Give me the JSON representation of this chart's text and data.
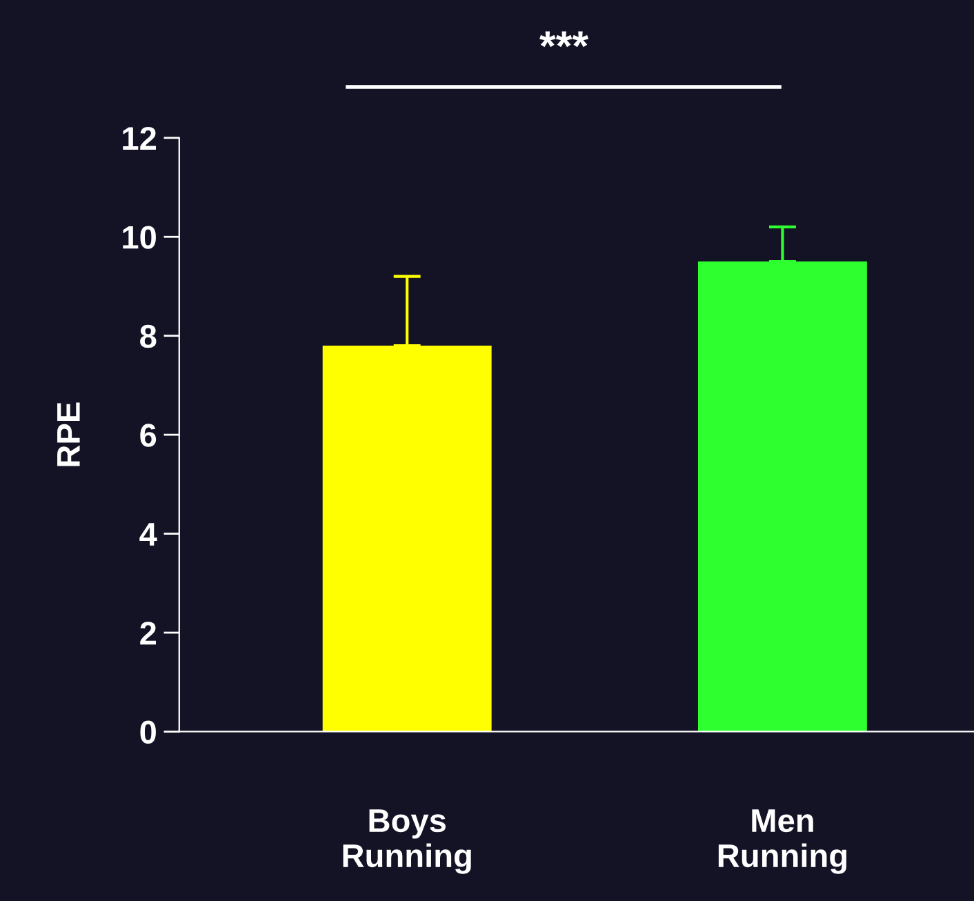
{
  "chart_data": {
    "type": "bar",
    "ylabel": "RPE",
    "categories": [
      "Boys\nRunning",
      "Men\nRunning"
    ],
    "values": [
      7.8,
      9.5
    ],
    "colors": [
      "#ffff00",
      "#2eff2e"
    ],
    "errors": [
      1.4,
      0.7
    ],
    "ylim": [
      0,
      12
    ],
    "yticks": [
      0,
      2,
      4,
      6,
      8,
      10,
      12
    ],
    "grid": false,
    "legend": false,
    "annotations": [
      "***"
    ]
  }
}
